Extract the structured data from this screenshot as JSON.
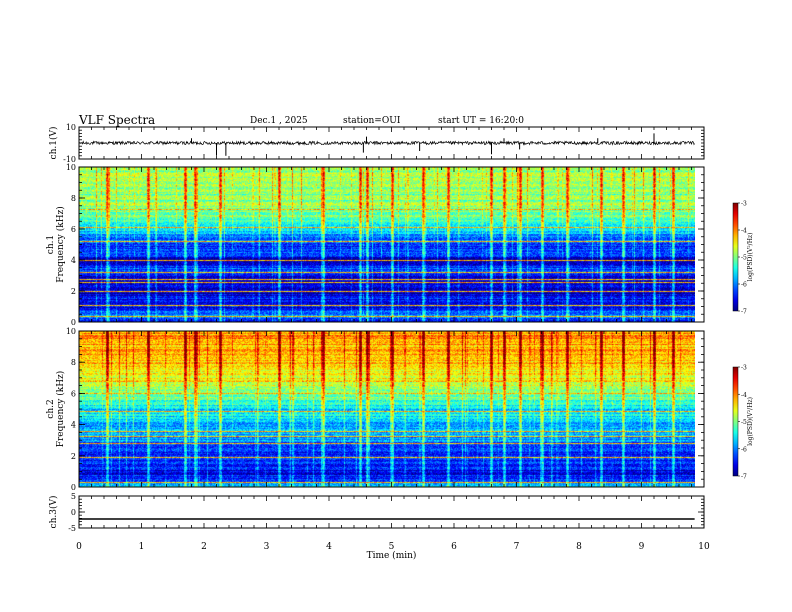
{
  "header": {
    "title": "VLF Spectra",
    "date": "Dec.1 , 2025",
    "station": "station=OUI",
    "start": "start UT = 16:20:0"
  },
  "chart_data": [
    {
      "type": "line",
      "ylabel": "ch.1(V)",
      "ylim": [
        -10,
        10
      ],
      "yticks": [
        10,
        -10
      ],
      "xlim": [
        0,
        9.85
      ],
      "baseline": 0,
      "noise_amplitude": 1.0,
      "spikes": [
        {
          "t": 1.8,
          "v": 3
        },
        {
          "t": 2.2,
          "v": -8
        },
        {
          "t": 2.35,
          "v": -8
        },
        {
          "t": 4.55,
          "v": -6
        },
        {
          "t": 4.6,
          "v": 4
        },
        {
          "t": 5.45,
          "v": -5
        },
        {
          "t": 6.6,
          "v": -7
        },
        {
          "t": 6.8,
          "v": 3
        },
        {
          "t": 7.05,
          "v": -4
        },
        {
          "t": 8.3,
          "v": 3
        },
        {
          "t": 9.2,
          "v": 6
        }
      ]
    },
    {
      "type": "heatmap",
      "ylabel": "ch.1 Frequency (kHz)",
      "ylim": [
        0,
        10
      ],
      "yticks": [
        0,
        2,
        4,
        6,
        8,
        10
      ],
      "xlim": [
        0,
        9.85
      ],
      "colorbar": {
        "label": "log(PSD)(V²/Hz)",
        "range": [
          -7,
          -3
        ],
        "ticks": [
          -3,
          -4,
          -5,
          -6,
          -7
        ]
      },
      "psd_profile": [
        {
          "f": 0.0,
          "v": -6.3
        },
        {
          "f": 0.5,
          "v": -6.0
        },
        {
          "f": 1.0,
          "v": -6.6
        },
        {
          "f": 1.5,
          "v": -6.5
        },
        {
          "f": 2.0,
          "v": -6.9
        },
        {
          "f": 2.5,
          "v": -6.5
        },
        {
          "f": 3.0,
          "v": -6.7
        },
        {
          "f": 3.5,
          "v": -6.2
        },
        {
          "f": 4.0,
          "v": -6.8
        },
        {
          "f": 4.5,
          "v": -6.2
        },
        {
          "f": 5.0,
          "v": -6.4
        },
        {
          "f": 5.5,
          "v": -6.0
        },
        {
          "f": 6.0,
          "v": -5.6
        },
        {
          "f": 6.5,
          "v": -5.2
        },
        {
          "f": 7.0,
          "v": -5.0
        },
        {
          "f": 7.5,
          "v": -4.9
        },
        {
          "f": 8.0,
          "v": -5.0
        },
        {
          "f": 9.0,
          "v": -4.9
        },
        {
          "f": 10.0,
          "v": -4.9
        }
      ],
      "tone_lines_khz": [
        0.4,
        1.1,
        2.0,
        2.6,
        2.75,
        3.2,
        4.0,
        5.2,
        6.1,
        7.3
      ],
      "burst_times_min": [
        0.45,
        1.1,
        1.7,
        1.85,
        2.25,
        3.2,
        3.9,
        4.5,
        4.6,
        5.0,
        5.5,
        5.9,
        6.6,
        6.8,
        7.05,
        7.4,
        7.8,
        8.35,
        8.7,
        9.2,
        9.5
      ]
    },
    {
      "type": "heatmap",
      "ylabel": "ch.2 Frequency (kHz)",
      "ylim": [
        0,
        10
      ],
      "yticks": [
        0,
        2,
        4,
        6,
        8,
        10
      ],
      "xlim": [
        0,
        9.85
      ],
      "colorbar": {
        "label": "log(PSD)(V²/Hz)",
        "range": [
          -7,
          -3
        ],
        "ticks": [
          -3,
          -4,
          -5,
          -6,
          -7
        ]
      },
      "psd_profile": [
        {
          "f": 0.0,
          "v": -5.6
        },
        {
          "f": 0.5,
          "v": -6.4
        },
        {
          "f": 1.0,
          "v": -6.6
        },
        {
          "f": 1.5,
          "v": -6.3
        },
        {
          "f": 2.0,
          "v": -6.3
        },
        {
          "f": 2.5,
          "v": -6.3
        },
        {
          "f": 3.0,
          "v": -6.0
        },
        {
          "f": 3.5,
          "v": -5.7
        },
        {
          "f": 4.0,
          "v": -5.9
        },
        {
          "f": 4.5,
          "v": -5.5
        },
        {
          "f": 5.0,
          "v": -5.7
        },
        {
          "f": 5.5,
          "v": -5.3
        },
        {
          "f": 6.0,
          "v": -5.0
        },
        {
          "f": 6.5,
          "v": -4.7
        },
        {
          "f": 7.0,
          "v": -4.6
        },
        {
          "f": 7.5,
          "v": -4.5
        },
        {
          "f": 8.0,
          "v": -4.3
        },
        {
          "f": 9.0,
          "v": -4.2
        },
        {
          "f": 10.0,
          "v": -4.1
        }
      ],
      "tone_lines_khz": [
        0.3,
        1.9,
        2.8,
        3.3,
        3.6,
        4.9,
        6.0,
        6.8
      ],
      "burst_times_min": [
        0.45,
        1.1,
        1.7,
        1.85,
        2.25,
        3.2,
        3.9,
        4.5,
        4.6,
        5.0,
        5.5,
        5.9,
        6.6,
        6.8,
        7.05,
        7.4,
        7.8,
        8.35,
        8.7,
        9.2,
        9.5
      ]
    },
    {
      "type": "line",
      "ylabel": "ch.3(V)",
      "ylim": [
        -5,
        5
      ],
      "yticks": [
        5,
        0,
        -5
      ],
      "xlim": [
        0,
        9.85
      ],
      "baseline": -2.2,
      "noise_amplitude": 0.0,
      "spikes": []
    }
  ],
  "xaxis": {
    "label": "Time (min)",
    "range": [
      0,
      10
    ],
    "ticks": [
      0,
      1,
      2,
      3,
      4,
      5,
      6,
      7,
      8,
      9,
      10
    ]
  }
}
